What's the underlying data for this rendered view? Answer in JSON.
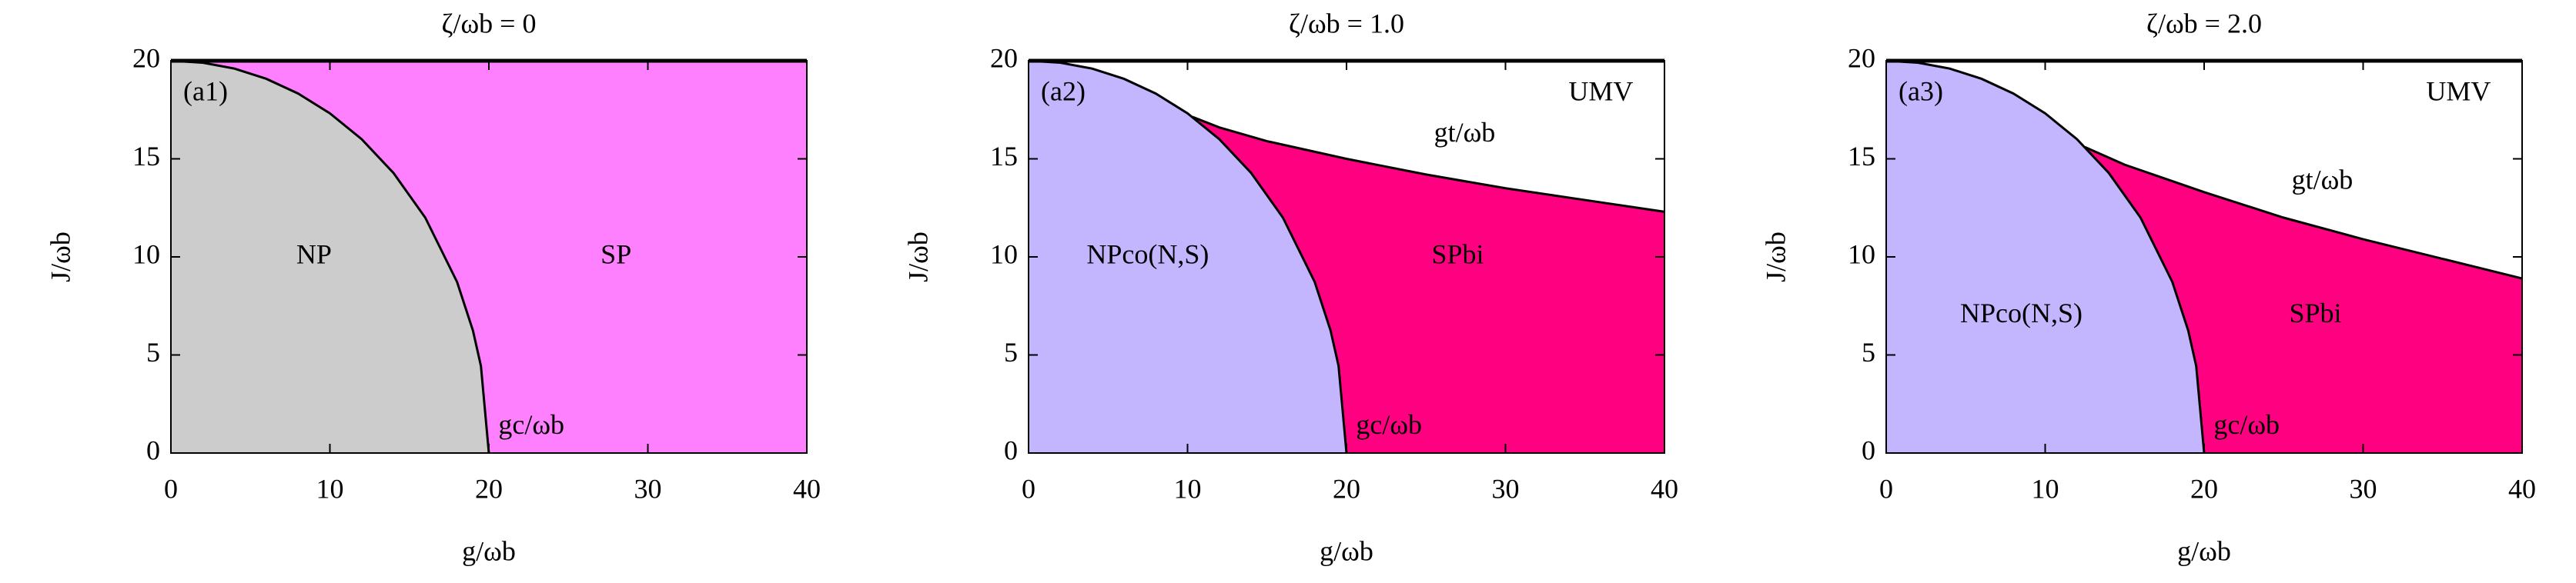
{
  "chart_data": [
    {
      "type": "phase",
      "title": "ζ/ωb = 0",
      "panel_label": "(a1)",
      "xlabel": "g/ωb",
      "ylabel": "J/ωb",
      "xlim": [
        0,
        40
      ],
      "ylim": [
        0,
        20
      ],
      "xticks": [
        0,
        10,
        20,
        30,
        40
      ],
      "yticks": [
        0,
        5,
        10,
        15,
        20
      ],
      "regions": [
        {
          "name": "NP",
          "color": "#cccccc"
        },
        {
          "name": "SP",
          "color": "#ff80ff"
        }
      ],
      "curves": [
        {
          "name": "gc/ωb",
          "x": [
            0,
            2,
            4,
            6,
            8,
            10,
            12,
            14,
            16,
            18,
            19,
            19.5,
            20
          ],
          "values": [
            20,
            19.9,
            19.6,
            19.08,
            18.33,
            17.32,
            16.0,
            14.28,
            12.0,
            8.72,
            6.24,
            4.44,
            0
          ]
        }
      ]
    },
    {
      "type": "phase",
      "title": "ζ/ωb = 1.0",
      "panel_label": "(a2)",
      "xlabel": "g/ωb",
      "ylabel": "J/ωb",
      "xlim": [
        0,
        40
      ],
      "ylim": [
        0,
        20
      ],
      "xticks": [
        0,
        10,
        20,
        30,
        40
      ],
      "yticks": [
        0,
        5,
        10,
        15,
        20
      ],
      "regions": [
        {
          "name": "NPco(N,S)",
          "color": "#c4b5ff"
        },
        {
          "name": "SPbi",
          "color": "#ff0080"
        },
        {
          "name": "UMV",
          "color": "#ffffff"
        }
      ],
      "curves": [
        {
          "name": "gc/ωb",
          "x": [
            0,
            2,
            4,
            6,
            8,
            10,
            12,
            14,
            16,
            18,
            19,
            19.5,
            20
          ],
          "values": [
            20,
            19.9,
            19.6,
            19.08,
            18.33,
            17.32,
            16.0,
            14.28,
            12.0,
            8.72,
            6.24,
            4.44,
            0
          ]
        },
        {
          "name": "gt/ωb",
          "x": [
            10.3,
            12,
            15,
            20,
            25,
            30,
            35,
            40
          ],
          "values": [
            17.14,
            16.6,
            15.9,
            15.0,
            14.2,
            13.5,
            12.9,
            12.3
          ]
        }
      ]
    },
    {
      "type": "phase",
      "title": "ζ/ωb = 2.0",
      "panel_label": "(a3)",
      "xlabel": "g/ωb",
      "ylabel": "J/ωb",
      "xlim": [
        0,
        40
      ],
      "ylim": [
        0,
        20
      ],
      "xticks": [
        0,
        10,
        20,
        30,
        40
      ],
      "yticks": [
        0,
        5,
        10,
        15,
        20
      ],
      "regions": [
        {
          "name": "NPco(N,S)",
          "color": "#c4b5ff"
        },
        {
          "name": "SPbi",
          "color": "#ff0080"
        },
        {
          "name": "UMV",
          "color": "#ffffff"
        }
      ],
      "curves": [
        {
          "name": "gc/ωb",
          "x": [
            0,
            2,
            4,
            6,
            8,
            10,
            12,
            14,
            16,
            18,
            19,
            19.5,
            20
          ],
          "values": [
            20,
            19.9,
            19.6,
            19.08,
            18.33,
            17.32,
            16.0,
            14.28,
            12.0,
            8.72,
            6.24,
            4.44,
            0
          ]
        },
        {
          "name": "gt/ωb",
          "x": [
            12.5,
            15,
            20,
            25,
            30,
            35,
            40
          ],
          "values": [
            15.6,
            14.7,
            13.3,
            12.0,
            10.9,
            9.9,
            8.9
          ]
        }
      ]
    }
  ]
}
